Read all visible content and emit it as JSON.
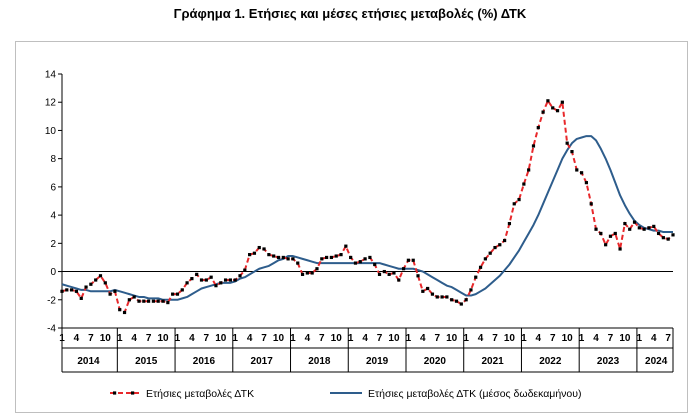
{
  "title": "Γράφημα 1. Ετήσιες και μέσες ετήσιες μεταβολές (%) ΔΤΚ",
  "colors": {
    "annual": "#e8282b",
    "annual_markers": "#000000",
    "average": "#2e5d8c",
    "axis": "#000000",
    "grid": "#d9d9d9"
  },
  "chart_data": {
    "type": "line",
    "title": "Γράφημα 1. Ετήσιες και μέσες ετήσιες μεταβολές (%) ΔΤΚ",
    "xlabel": "",
    "ylabel": "",
    "ylim": [
      -4,
      14
    ],
    "yticks": [
      -4,
      -2,
      0,
      2,
      4,
      6,
      8,
      10,
      12,
      14
    ],
    "grid": false,
    "legend_position": "bottom",
    "month_tick_labels": [
      "1",
      "4",
      "7",
      "10"
    ],
    "years": [
      "2014",
      "2015",
      "2016",
      "2017",
      "2018",
      "2019",
      "2020",
      "2021",
      "2022",
      "2023",
      "2024"
    ],
    "x_start": "2014-01",
    "x_end": "2024-08",
    "series": [
      {
        "name": "Ετήσιες μεταβολές ΔΤΚ",
        "style": "dashed-with-markers",
        "values": [
          -1.4,
          -1.3,
          -1.3,
          -1.4,
          -1.9,
          -1.1,
          -0.9,
          -0.6,
          -0.3,
          -0.8,
          -1.6,
          -1.4,
          -2.7,
          -2.9,
          -2.0,
          -1.8,
          -2.1,
          -2.1,
          -2.1,
          -2.1,
          -2.1,
          -2.1,
          -2.2,
          -1.6,
          -1.6,
          -1.3,
          -0.8,
          -0.5,
          -0.2,
          -0.6,
          -0.6,
          -0.4,
          -1.0,
          -0.8,
          -0.6,
          -0.6,
          -0.6,
          -0.3,
          0.1,
          1.2,
          1.3,
          1.7,
          1.6,
          1.2,
          1.1,
          1.0,
          1.0,
          0.9,
          0.9,
          0.6,
          -0.2,
          -0.1,
          -0.1,
          0.2,
          0.9,
          1.0,
          1.0,
          1.1,
          1.2,
          1.8,
          1.0,
          0.6,
          0.7,
          0.9,
          1.0,
          0.5,
          -0.2,
          0.0,
          -0.2,
          -0.1,
          -0.6,
          0.2,
          0.8,
          0.8,
          -0.3,
          -1.4,
          -1.2,
          -1.6,
          -1.8,
          -1.8,
          -1.8,
          -2.0,
          -2.1,
          -2.3,
          -2.0,
          -1.3,
          -0.4,
          0.3,
          0.9,
          1.3,
          1.7,
          1.9,
          2.2,
          3.4,
          4.8,
          5.1,
          6.2,
          7.2,
          8.9,
          10.2,
          11.3,
          12.1,
          11.6,
          11.4,
          12.0,
          9.1,
          8.5,
          7.2,
          7.0,
          6.3,
          4.8,
          3.0,
          2.7,
          1.9,
          2.5,
          2.7,
          1.6,
          3.4,
          3.0,
          3.5,
          3.1,
          3.0,
          3.1,
          3.2,
          2.7,
          2.4,
          2.3,
          2.6
        ]
      },
      {
        "name": "Ετήσιες μεταβολές ΔΤΚ (μέσος δωδεκαμήνου)",
        "style": "solid",
        "values": [
          -0.9,
          -1.0,
          -1.1,
          -1.2,
          -1.3,
          -1.3,
          -1.4,
          -1.4,
          -1.4,
          -1.4,
          -1.4,
          -1.3,
          -1.4,
          -1.5,
          -1.6,
          -1.7,
          -1.8,
          -1.8,
          -1.9,
          -1.9,
          -1.9,
          -2.0,
          -2.0,
          -2.0,
          -2.0,
          -1.9,
          -1.8,
          -1.6,
          -1.4,
          -1.2,
          -1.1,
          -1.0,
          -0.9,
          -0.8,
          -0.8,
          -0.8,
          -0.7,
          -0.5,
          -0.4,
          -0.2,
          0.0,
          0.2,
          0.3,
          0.4,
          0.6,
          0.8,
          0.9,
          1.1,
          1.1,
          1.0,
          0.9,
          0.8,
          0.7,
          0.6,
          0.6,
          0.6,
          0.6,
          0.6,
          0.6,
          0.6,
          0.6,
          0.6,
          0.6,
          0.6,
          0.6,
          0.6,
          0.6,
          0.5,
          0.4,
          0.3,
          0.2,
          0.2,
          0.2,
          0.2,
          0.1,
          0.0,
          -0.2,
          -0.4,
          -0.6,
          -0.8,
          -1.0,
          -1.1,
          -1.3,
          -1.5,
          -1.7,
          -1.7,
          -1.6,
          -1.4,
          -1.2,
          -0.9,
          -0.6,
          -0.3,
          0.1,
          0.5,
          1.0,
          1.5,
          2.1,
          2.7,
          3.3,
          4.0,
          4.8,
          5.6,
          6.4,
          7.2,
          8.0,
          8.6,
          9.1,
          9.4,
          9.5,
          9.6,
          9.6,
          9.3,
          8.7,
          8.0,
          7.2,
          6.3,
          5.4,
          4.7,
          4.1,
          3.6,
          3.3,
          3.1,
          3.0,
          2.9,
          2.9,
          2.8,
          2.8,
          2.8
        ]
      }
    ]
  }
}
